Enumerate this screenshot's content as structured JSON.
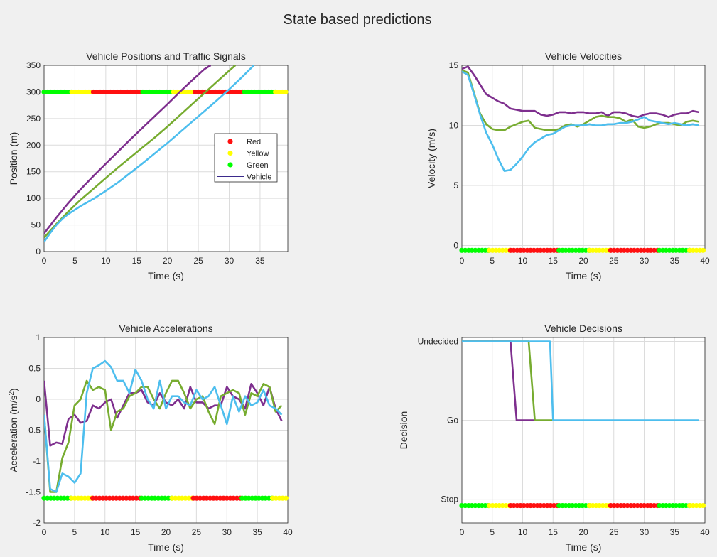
{
  "figure_title": "State based predictions",
  "colors": {
    "red_signal": "#ff1010",
    "yellow_signal": "#ffff00",
    "green_signal": "#00ff00",
    "vehicle_1": "#7e2f8e",
    "vehicle_2": "#77ac30",
    "vehicle_3": "#4dbeee",
    "grid": "#dcdcdc",
    "axes_bg": "#ffffff",
    "figure_bg": "#f0f0f0"
  },
  "legend": {
    "entries": [
      {
        "label": "Red",
        "marker": "dot",
        "color": "#ff1010"
      },
      {
        "label": "Yellow",
        "marker": "dot",
        "color": "#ffff00"
      },
      {
        "label": "Green",
        "marker": "dot",
        "color": "#00ff00"
      },
      {
        "label": "Vehicle",
        "marker": "line",
        "color": "#3b2a8c"
      }
    ]
  },
  "signal_schedule": [
    {
      "state": "green",
      "start": 0,
      "end": 4.5
    },
    {
      "state": "yellow",
      "start": 4.5,
      "end": 8
    },
    {
      "state": "red",
      "start": 8,
      "end": 16
    },
    {
      "state": "green",
      "start": 16,
      "end": 21
    },
    {
      "state": "yellow",
      "start": 21,
      "end": 24.5
    },
    {
      "state": "red",
      "start": 24.5,
      "end": 32.5
    },
    {
      "state": "green",
      "start": 32.5,
      "end": 37.5
    },
    {
      "state": "yellow",
      "start": 37.5,
      "end": 40
    }
  ],
  "chart_data": [
    {
      "type": "line",
      "title": "Vehicle Positions and Traffic Signals",
      "xlabel": "Time (s)",
      "ylabel": "Position (m)",
      "xlim": [
        0,
        39.5
      ],
      "ylim": [
        0,
        350
      ],
      "xticks": [
        0,
        5,
        10,
        15,
        20,
        25,
        30,
        35
      ],
      "yticks": [
        0,
        50,
        100,
        150,
        200,
        250,
        300,
        350
      ],
      "grid": true,
      "legend_position": "right",
      "signal_y": 300,
      "series": [
        {
          "color": "#7e2f8e",
          "x": [
            0,
            2,
            4,
            6,
            8,
            10,
            12,
            14,
            16,
            18,
            20,
            22,
            24,
            26,
            27
          ],
          "y": [
            34,
            64,
            92,
            118,
            142,
            165,
            188,
            211,
            233,
            255,
            277,
            300,
            322,
            343,
            350
          ]
        },
        {
          "color": "#77ac30",
          "x": [
            0,
            2,
            4,
            6,
            8,
            10,
            12,
            14,
            16,
            18,
            20,
            22,
            24,
            26,
            28,
            30,
            31
          ],
          "y": [
            26,
            52,
            76,
            98,
            118,
            138,
            158,
            177,
            196,
            215,
            235,
            256,
            277,
            298,
            319,
            340,
            350
          ]
        },
        {
          "color": "#4dbeee",
          "x": [
            0,
            1,
            2,
            3,
            4,
            6,
            8,
            10,
            12,
            14,
            16,
            18,
            20,
            22,
            24,
            26,
            28,
            30,
            32,
            34
          ],
          "y": [
            18,
            35,
            50,
            62,
            71,
            86,
            99,
            114,
            130,
            148,
            166,
            185,
            204,
            224,
            244,
            264,
            284,
            305,
            327,
            350
          ]
        }
      ]
    },
    {
      "type": "line",
      "title": "Vehicle Velocities",
      "xlabel": "Time (s)",
      "ylabel": "Velocity (m/s)",
      "xlim": [
        0,
        40
      ],
      "ylim": [
        -0.5,
        15
      ],
      "xticks": [
        0,
        5,
        10,
        15,
        20,
        25,
        30,
        35,
        40
      ],
      "yticks": [
        0,
        5,
        10,
        15
      ],
      "grid": true,
      "signal_y": -0.4,
      "series": [
        {
          "color": "#7e2f8e",
          "x": [
            0,
            1,
            2,
            3,
            4,
            5,
            6,
            7,
            8,
            9,
            10,
            11,
            12,
            13,
            14,
            15,
            16,
            17,
            18,
            19,
            20,
            21,
            22,
            23,
            24,
            25,
            26,
            27,
            28,
            29,
            30,
            31,
            32,
            33,
            34,
            35,
            36,
            37,
            38,
            39
          ],
          "y": [
            14.7,
            14.9,
            14.2,
            13.4,
            12.6,
            12.3,
            12.0,
            11.8,
            11.4,
            11.3,
            11.2,
            11.2,
            11.2,
            10.9,
            10.8,
            10.9,
            11.1,
            11.1,
            11.0,
            11.1,
            11.1,
            11.0,
            11.0,
            11.1,
            10.8,
            11.1,
            11.1,
            11.0,
            10.8,
            10.7,
            10.9,
            11.0,
            11.0,
            10.9,
            10.7,
            10.9,
            11.0,
            11.0,
            11.2,
            11.1
          ]
        },
        {
          "color": "#77ac30",
          "x": [
            0,
            1,
            2,
            3,
            4,
            5,
            6,
            7,
            8,
            9,
            10,
            11,
            12,
            13,
            14,
            15,
            16,
            17,
            18,
            19,
            20,
            21,
            22,
            23,
            24,
            25,
            26,
            27,
            28,
            29,
            30,
            31,
            32,
            33,
            34,
            35,
            36,
            37,
            38,
            39
          ],
          "y": [
            14.6,
            14.4,
            12.7,
            11.0,
            10.1,
            9.7,
            9.6,
            9.6,
            9.9,
            10.1,
            10.3,
            10.4,
            9.8,
            9.7,
            9.6,
            9.6,
            9.7,
            10.0,
            10.1,
            9.9,
            10.1,
            10.4,
            10.7,
            10.8,
            10.7,
            10.7,
            10.6,
            10.3,
            10.5,
            9.9,
            9.8,
            9.9,
            10.1,
            10.2,
            10.2,
            10.1,
            10.0,
            10.3,
            10.4,
            10.3
          ]
        },
        {
          "color": "#4dbeee",
          "x": [
            0,
            1,
            2,
            3,
            4,
            5,
            6,
            7,
            8,
            9,
            10,
            11,
            12,
            13,
            14,
            15,
            16,
            17,
            18,
            19,
            20,
            21,
            22,
            23,
            24,
            25,
            26,
            27,
            28,
            29,
            30,
            31,
            32,
            33,
            34,
            35,
            36,
            37,
            38,
            39
          ],
          "y": [
            14.5,
            14.2,
            12.6,
            10.9,
            9.4,
            8.4,
            7.2,
            6.2,
            6.3,
            6.8,
            7.4,
            8.1,
            8.6,
            8.9,
            9.2,
            9.3,
            9.6,
            9.9,
            10.0,
            10.0,
            10.0,
            10.1,
            10.0,
            10.0,
            10.1,
            10.1,
            10.2,
            10.2,
            10.3,
            10.5,
            10.7,
            10.4,
            10.3,
            10.2,
            10.1,
            10.2,
            10.1,
            10.0,
            10.1,
            10.0
          ]
        }
      ]
    },
    {
      "type": "line",
      "title": "Vehicle Accelerations",
      "xlabel": "Time (s)",
      "ylabel": "Acceleration (m/s",
      "ylabel_superscript": "2",
      "ylabel_suffix": ")",
      "xlim": [
        0,
        40
      ],
      "ylim": [
        -2,
        1
      ],
      "xticks": [
        0,
        5,
        10,
        15,
        20,
        25,
        30,
        35,
        40
      ],
      "yticks": [
        -2,
        -1.5,
        -1,
        -0.5,
        0,
        0.5,
        1
      ],
      "grid": true,
      "signal_y": -1.6,
      "series": [
        {
          "color": "#7e2f8e",
          "x": [
            0,
            1,
            2,
            3,
            4,
            5,
            6,
            7,
            8,
            9,
            10,
            11,
            12,
            13,
            14,
            15,
            16,
            17,
            18,
            19,
            20,
            21,
            22,
            23,
            24,
            25,
            26,
            27,
            28,
            29,
            30,
            31,
            32,
            33,
            34,
            35,
            36,
            37,
            38,
            39
          ],
          "y": [
            0.3,
            -0.75,
            -0.7,
            -0.72,
            -0.32,
            -0.25,
            -0.38,
            -0.35,
            -0.1,
            -0.15,
            -0.05,
            0.0,
            -0.3,
            -0.1,
            0.1,
            0.1,
            0.15,
            -0.05,
            -0.1,
            0.1,
            -0.05,
            -0.1,
            0.0,
            -0.15,
            0.2,
            -0.05,
            -0.05,
            -0.15,
            -0.1,
            -0.1,
            0.2,
            0.05,
            0.0,
            -0.15,
            0.25,
            0.1,
            -0.1,
            0.2,
            -0.15,
            -0.35
          ]
        },
        {
          "color": "#77ac30",
          "x": [
            0,
            1,
            2,
            3,
            4,
            5,
            6,
            7,
            8,
            9,
            10,
            11,
            12,
            13,
            14,
            15,
            16,
            17,
            18,
            19,
            20,
            21,
            22,
            23,
            24,
            25,
            26,
            27,
            28,
            29,
            30,
            31,
            32,
            33,
            34,
            35,
            36,
            37,
            38,
            39
          ],
          "y": [
            -0.25,
            -1.5,
            -1.5,
            -0.95,
            -0.7,
            -0.1,
            0.0,
            0.3,
            0.15,
            0.2,
            0.15,
            -0.5,
            -0.2,
            -0.15,
            0.05,
            0.1,
            0.2,
            0.2,
            0.0,
            -0.15,
            0.1,
            0.3,
            0.3,
            0.1,
            -0.15,
            0.0,
            0.05,
            -0.2,
            -0.4,
            0.05,
            0.1,
            0.15,
            0.1,
            -0.25,
            0.1,
            0.05,
            0.25,
            0.2,
            -0.2,
            -0.1
          ]
        },
        {
          "color": "#4dbeee",
          "x": [
            0,
            1,
            2,
            3,
            4,
            5,
            6,
            7,
            8,
            9,
            10,
            11,
            12,
            13,
            14,
            15,
            16,
            17,
            18,
            19,
            20,
            21,
            22,
            23,
            24,
            25,
            26,
            27,
            28,
            29,
            30,
            31,
            32,
            33,
            34,
            35,
            36,
            37,
            38,
            39
          ],
          "y": [
            -0.25,
            -1.45,
            -1.5,
            -1.2,
            -1.25,
            -1.35,
            -1.2,
            0.1,
            0.5,
            0.55,
            0.62,
            0.52,
            0.3,
            0.3,
            0.1,
            0.48,
            0.3,
            0.0,
            -0.15,
            0.3,
            -0.15,
            0.05,
            0.05,
            -0.05,
            -0.1,
            0.15,
            0.0,
            0.05,
            0.2,
            -0.1,
            -0.4,
            0.05,
            -0.2,
            0.05,
            -0.1,
            -0.05,
            0.15,
            -0.1,
            -0.15,
            -0.25
          ]
        }
      ]
    },
    {
      "type": "line",
      "title": "Vehicle Decisions",
      "xlabel": "Time (s)",
      "ylabel": "Decision",
      "xlim": [
        0,
        40
      ],
      "ylim": [
        -0.3,
        2.05
      ],
      "xticks": [
        0,
        5,
        10,
        15,
        20,
        25,
        30,
        35,
        40
      ],
      "yticks": [
        0,
        1,
        2
      ],
      "yticklabels": [
        "Stop",
        "Go",
        "Undecided"
      ],
      "grid": true,
      "signal_y": -0.08,
      "series": [
        {
          "color": "#7e2f8e",
          "x": [
            0,
            8,
            9,
            12
          ],
          "y": [
            2,
            2,
            1,
            1
          ]
        },
        {
          "color": "#77ac30",
          "x": [
            0,
            11,
            12,
            15
          ],
          "y": [
            2,
            2,
            1,
            1
          ]
        },
        {
          "color": "#4dbeee",
          "x": [
            0,
            14.5,
            15,
            39
          ],
          "y": [
            2,
            2,
            1,
            1
          ]
        }
      ]
    }
  ]
}
